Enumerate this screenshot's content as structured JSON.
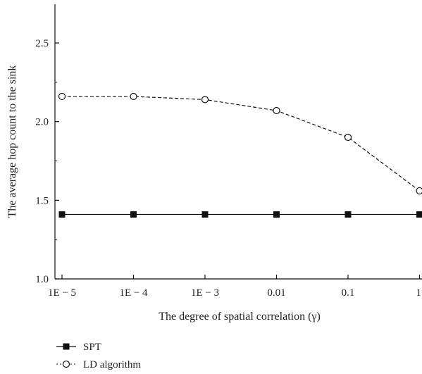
{
  "chart_data": {
    "type": "line",
    "categories": [
      "1E − 5",
      "1E − 4",
      "1E − 3",
      "0.01",
      "0.1",
      "1"
    ],
    "xlabel": "The degree of spatial correlation (γ)",
    "ylabel": "The average hop count to the sink",
    "ylim": [
      1.0,
      2.75
    ],
    "yticks": [
      "1.0",
      "1.5",
      "2.0",
      "2.5"
    ],
    "grid": false,
    "legend_position": "bottom-left",
    "series": [
      {
        "name": "SPT",
        "values": [
          1.41,
          1.41,
          1.41,
          1.41,
          1.41,
          1.41
        ],
        "color": "#111111",
        "line": "solid",
        "marker": "filled-square"
      },
      {
        "name": "LD algorithm",
        "values": [
          2.16,
          2.16,
          2.14,
          2.07,
          1.9,
          1.56
        ],
        "color": "#111111",
        "line": "dashed",
        "marker": "open-circle"
      }
    ]
  }
}
